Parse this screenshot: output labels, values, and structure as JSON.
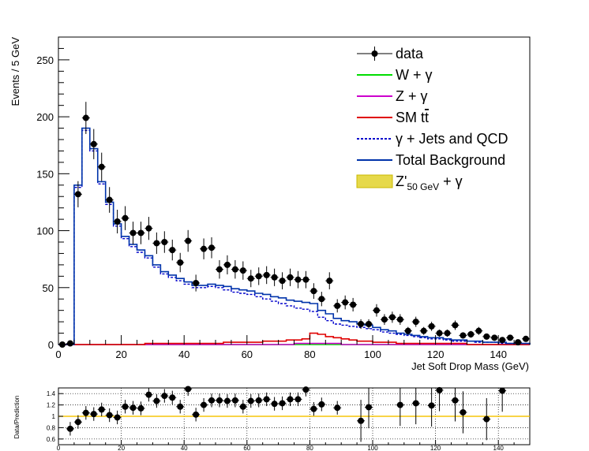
{
  "chart_data": [
    {
      "type": "step-histogram",
      "xlabel": "Jet Soft Drop Mass (GeV)",
      "ylabel": "Events / 5 GeV",
      "xlim": [
        0,
        150
      ],
      "ylim": [
        0,
        270
      ],
      "bin_width": 2.5,
      "xticks": [
        0,
        20,
        40,
        60,
        80,
        100,
        120,
        140
      ],
      "yticks": [
        0,
        50,
        100,
        150,
        200,
        250
      ],
      "legend": {
        "placement": "top-right",
        "entries": [
          {
            "key": "data",
            "label": "data",
            "style": "marker-line",
            "color": "#000000"
          },
          {
            "key": "w",
            "label": "W + γ",
            "style": "line",
            "color": "#00dd00"
          },
          {
            "key": "z",
            "label": "Z + γ",
            "style": "line",
            "color": "#cc00cc"
          },
          {
            "key": "tt_prefix",
            "label": "SM t",
            "label2": "t",
            "style": "line",
            "color": "#e00000"
          },
          {
            "key": "qcd",
            "label": "γ + Jets and QCD",
            "style": "dashed",
            "color": "#0000cc"
          },
          {
            "key": "total",
            "label": "Total Background",
            "style": "line",
            "color": "#0033aa"
          },
          {
            "key": "signal",
            "label": "Z'",
            "sub": "50 GeV",
            "suffix": " + γ",
            "style": "fill",
            "color": "#e6d94a"
          }
        ]
      },
      "data_points": {
        "x": [
          1.25,
          3.75,
          6.25,
          8.75,
          11.25,
          13.75,
          16.25,
          18.75,
          21.25,
          23.75,
          26.25,
          28.75,
          31.25,
          33.75,
          36.25,
          38.75,
          41.25,
          43.75,
          46.25,
          48.75,
          51.25,
          53.75,
          56.25,
          58.75,
          61.25,
          63.75,
          66.25,
          68.75,
          71.25,
          73.75,
          76.25,
          78.75,
          81.25,
          83.75,
          86.25,
          88.75,
          91.25,
          93.75,
          96.25,
          98.75,
          101.25,
          103.75,
          106.25,
          108.75,
          111.25,
          113.75,
          116.25,
          118.75,
          121.25,
          123.75,
          126.25,
          128.75,
          131.25,
          133.75,
          136.25,
          138.75,
          141.25,
          143.75,
          146.25,
          148.75
        ],
        "y": [
          0,
          1,
          132,
          199,
          176,
          156,
          127,
          108,
          111,
          98,
          98,
          102,
          89,
          90,
          83,
          72,
          91,
          54,
          84,
          85,
          66,
          70,
          66,
          65,
          58,
          60,
          61,
          59,
          56,
          59,
          57,
          57,
          47,
          40,
          56,
          34,
          37,
          35,
          18,
          18,
          30,
          22,
          24,
          22,
          12,
          20,
          12,
          16,
          10,
          10,
          17,
          8,
          9,
          12,
          7,
          6,
          4,
          6,
          2,
          5
        ]
      },
      "total_background": [
        0,
        0,
        140,
        190,
        172,
        143,
        125,
        106,
        95,
        88,
        83,
        78,
        70,
        64,
        61,
        58,
        55,
        52,
        52,
        53,
        52,
        51,
        49,
        48,
        47,
        45,
        44,
        42,
        41,
        39,
        38,
        37,
        36,
        30,
        27,
        23,
        21,
        20,
        18,
        17,
        15,
        13,
        12,
        10,
        9,
        8,
        7,
        6,
        6,
        5,
        4,
        4,
        3,
        3,
        2,
        2,
        2,
        1,
        1,
        1
      ],
      "qcd": [
        0,
        0,
        138,
        188,
        170,
        141,
        123,
        104,
        93,
        86,
        81,
        76,
        68,
        62,
        59,
        56,
        53,
        50,
        50,
        51,
        50,
        48,
        46,
        45,
        44,
        42,
        40,
        38,
        36,
        34,
        32,
        31,
        29,
        24,
        21,
        18,
        17,
        16,
        15,
        14,
        13,
        11,
        10,
        9,
        8,
        7,
        6,
        5,
        5,
        4,
        3,
        3,
        3,
        2,
        2,
        2,
        1,
        1,
        1,
        1
      ],
      "sm_tt": [
        0,
        0,
        0,
        0,
        0,
        0,
        0,
        0,
        0,
        0,
        0,
        1,
        1,
        1,
        1,
        1,
        1,
        1,
        1,
        1,
        1,
        2,
        2,
        2,
        2,
        2,
        3,
        3,
        3,
        4,
        4,
        5,
        10,
        9,
        7,
        6,
        5,
        4,
        3,
        3,
        2,
        2,
        2,
        1,
        1,
        1,
        1,
        1,
        1,
        1,
        1,
        1,
        0,
        0,
        0,
        0,
        0,
        0,
        0,
        0
      ],
      "w_gamma": [
        0,
        0,
        0,
        0,
        0,
        0,
        0,
        0,
        0,
        0,
        0,
        0,
        0,
        0,
        0,
        0,
        0,
        0,
        0,
        0,
        0,
        0,
        0,
        0,
        0,
        0,
        0,
        0,
        0,
        0,
        0,
        0,
        0,
        0,
        0,
        0,
        0,
        0,
        0,
        0,
        0,
        0,
        0,
        0,
        0,
        0,
        0,
        0,
        0,
        0,
        0,
        0,
        0,
        0,
        0,
        0,
        0,
        0,
        0,
        0
      ],
      "z_gamma": [
        0,
        0,
        0,
        0,
        0,
        0,
        0,
        0,
        0,
        0,
        0,
        0,
        0,
        0,
        0,
        0,
        0,
        0,
        0,
        0,
        0,
        0,
        0,
        0,
        0,
        0,
        0,
        0,
        0,
        0,
        1,
        1,
        1,
        1,
        1,
        1,
        0,
        0,
        0,
        0,
        0,
        0,
        0,
        0,
        0,
        0,
        0,
        0,
        0,
        0,
        0,
        0,
        0,
        0,
        0,
        0,
        0,
        0,
        0,
        0
      ]
    },
    {
      "type": "scatter",
      "xlabel": "",
      "ylabel": "Data/Prediction",
      "xlim": [
        0,
        150
      ],
      "ylim": [
        0.5,
        1.5
      ],
      "xticks": [
        0,
        20,
        40,
        60,
        80,
        100,
        120,
        140
      ],
      "yticks": [
        0.6,
        0.8,
        1,
        1.2,
        1.4
      ],
      "ytick_labels": [
        "0.6",
        "0.8",
        "1",
        "1.2",
        "1.4"
      ],
      "xtick_labels": [
        "0",
        "20",
        "40",
        "60",
        "80",
        "100",
        "120",
        "140"
      ],
      "reference_line": 1.0,
      "x": [
        3.75,
        6.25,
        8.75,
        11.25,
        13.75,
        16.25,
        18.75,
        21.25,
        23.75,
        26.25,
        28.75,
        31.25,
        33.75,
        36.25,
        38.75,
        41.25,
        43.75,
        46.25,
        48.75,
        51.25,
        53.75,
        56.25,
        58.75,
        61.25,
        63.75,
        66.25,
        68.75,
        71.25,
        73.75,
        76.25,
        78.75,
        81.25,
        83.75,
        88.75,
        96.25,
        98.75,
        108.75,
        113.75,
        118.75,
        121.25,
        126.25,
        128.75,
        136.25,
        141.25
      ],
      "y": [
        0.78,
        0.9,
        1.06,
        1.04,
        1.12,
        1.02,
        0.98,
        1.17,
        1.15,
        1.14,
        1.38,
        1.27,
        1.36,
        1.33,
        1.17,
        1.48,
        1.03,
        1.2,
        1.28,
        1.28,
        1.27,
        1.28,
        1.17,
        1.27,
        1.28,
        1.3,
        1.22,
        1.23,
        1.3,
        1.3,
        1.47,
        1.13,
        1.21,
        1.15,
        0.92,
        1.16,
        1.2,
        1.23,
        1.19,
        1.46,
        1.28,
        1.07,
        0.95,
        1.45
      ]
    }
  ]
}
